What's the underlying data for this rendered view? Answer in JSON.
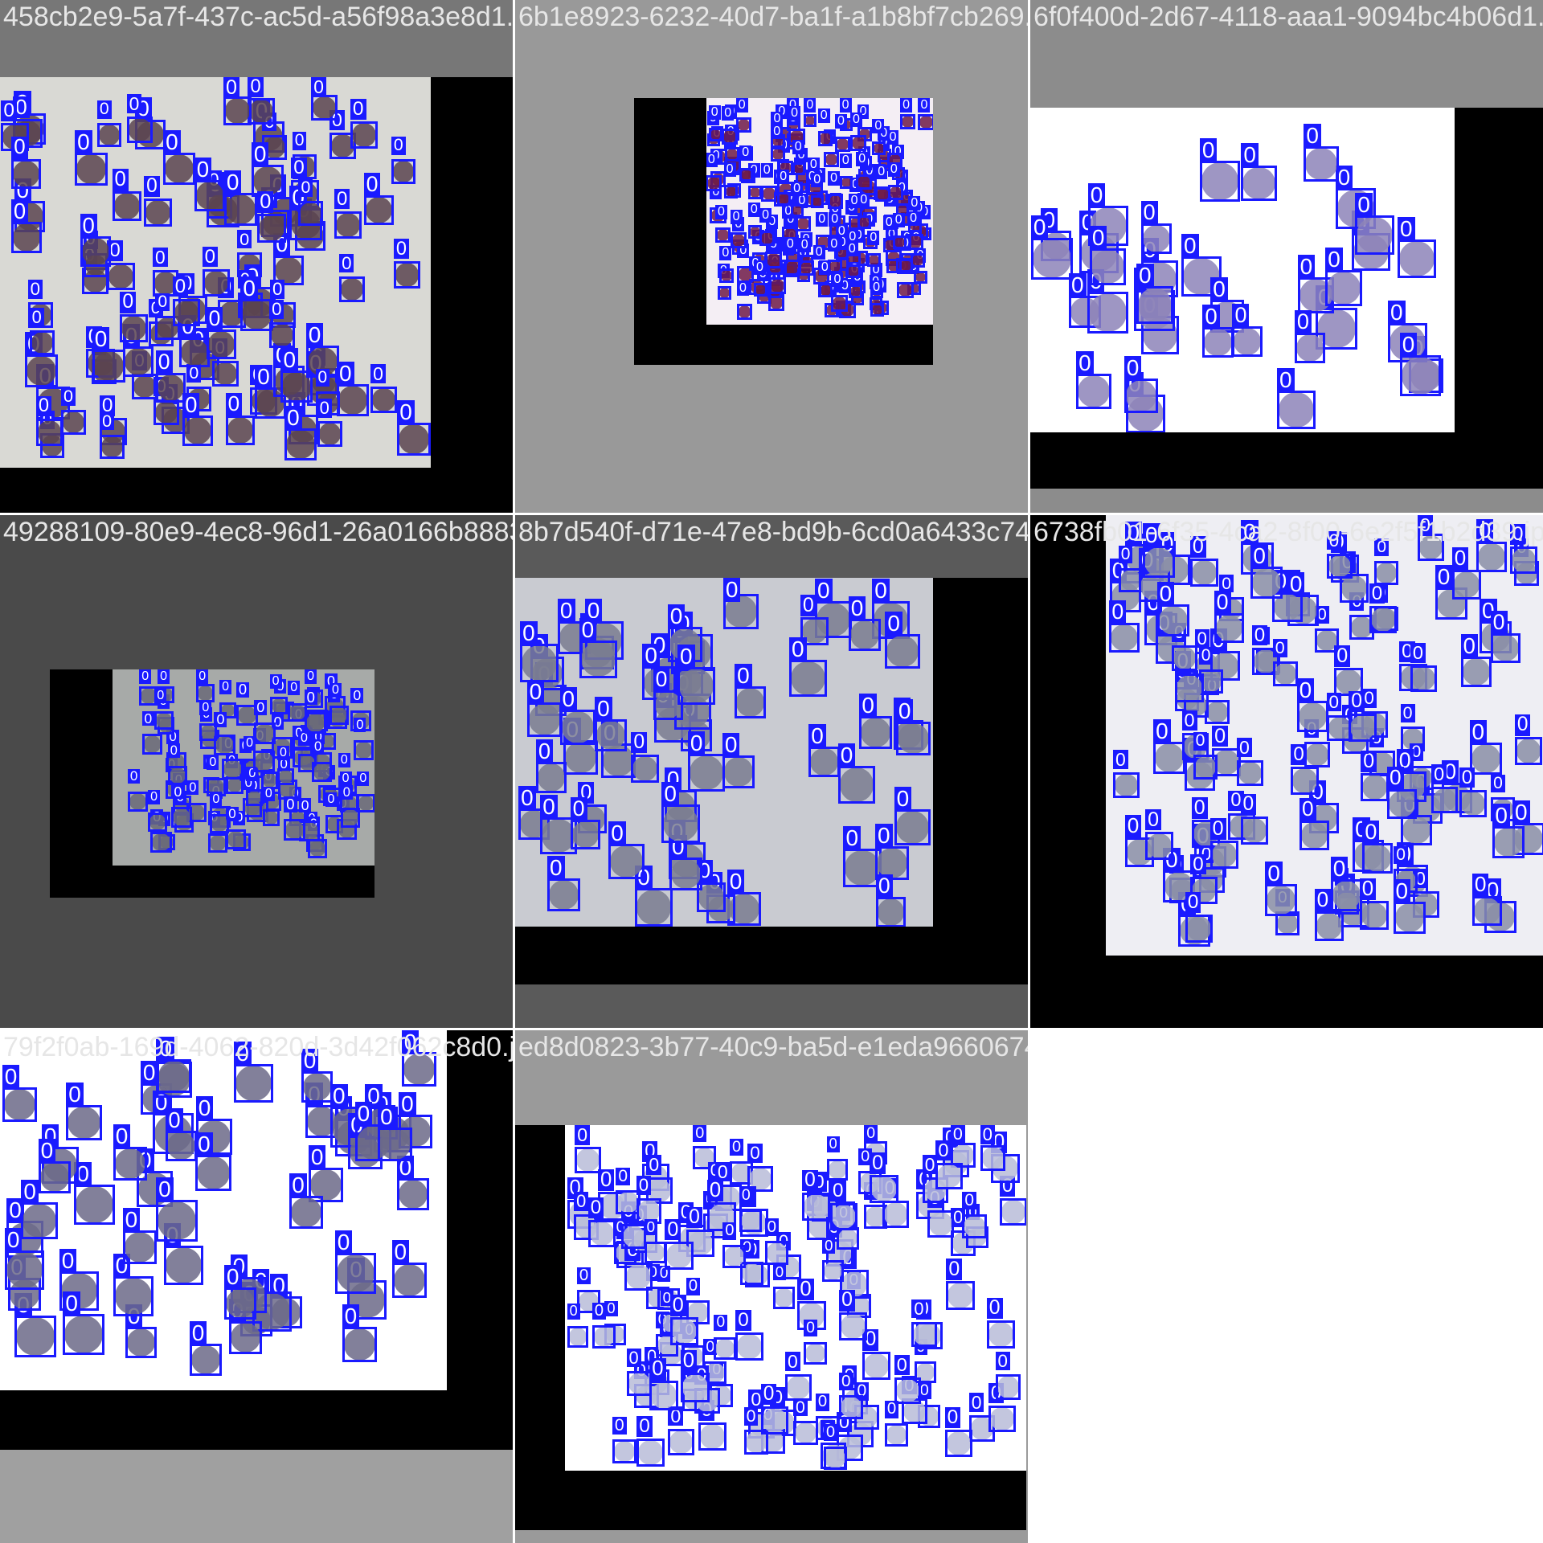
{
  "mosaic": {
    "box_label": "0",
    "box_color": "#1a1aff",
    "tiles": [
      {
        "filename": "458cb2e9-5a7f-437c-ac5d-a56f98a3e8d1.jpg",
        "bg": "#777777",
        "pad": "#000000",
        "img": "#d9d9d4",
        "cell": "#5b4450"
      },
      {
        "filename": "6b1e8923-6232-40d7-ba1f-a1b8bf7cb269.jpg",
        "bg": "#999999",
        "pad": "#000000",
        "img": "#f4eef4",
        "cell": "#6e1a48"
      },
      {
        "filename": "6f0f400d-2d67-4118-aaa1-9094bc4b06d1.jpg",
        "bg": "#8c8c8c",
        "pad": "#000000",
        "img": "#ffffff",
        "cell": "#8d84b8"
      },
      {
        "filename": "49288109-80e9-4ec8-96d1-26a0166b8883.jpg",
        "bg": "#4a4a4a",
        "pad": "#000000",
        "img": "#a7aaa8",
        "cell": "#6a6a78"
      },
      {
        "filename": "8b7d540f-d71e-47e8-bd9b-6cd0a6433c74.jpg",
        "bg": "#5a5a5a",
        "pad": "#000000",
        "img": "#c9cbd1",
        "cell": "#7a7d90"
      },
      {
        "filename": "6738fb01-6f35-4ca2-8f00-6e2f5f1b2d39.jpg",
        "bg": "#000000",
        "pad": "#000000",
        "img": "#eeeef3",
        "cell": "#8a8ea6"
      },
      {
        "filename": "79f2f0ab-169d-4062-820d-3d42f062c8d0.jpg",
        "bg": "#a0a0a0",
        "pad": "#000000",
        "img": "#ffffff",
        "cell": "#6c6a88"
      },
      {
        "filename": "ed8d0823-3b77-40c9-ba5d-e1eda9660674.jpg",
        "bg": "#9a9a9a",
        "pad": "#000000",
        "img": "#ffffff",
        "cell": "#b8bcd8"
      }
    ]
  }
}
